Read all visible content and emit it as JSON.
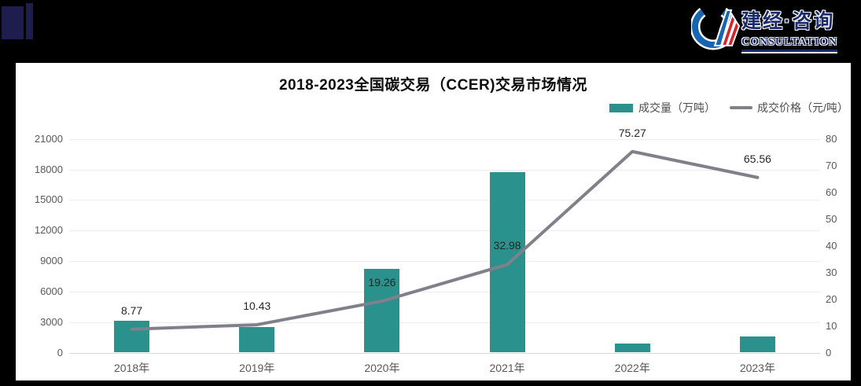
{
  "header": {
    "logo": {
      "brand_cn": "建经·咨询",
      "brand_en": "CONSULTATION",
      "ring_color": "#1565b0",
      "stripe_color": "#d8232a",
      "text_color": "#1a2a6c"
    },
    "accent_color": "#1d1d4e",
    "background": "#000000"
  },
  "chart_data": {
    "type": "bar+line",
    "title": "2018-2023全国碳交易（CCER)交易市场情况",
    "categories": [
      "2018年",
      "2019年",
      "2020年",
      "2021年",
      "2022年",
      "2023年"
    ],
    "series": [
      {
        "name": "成交量（万吨）",
        "type": "bar",
        "axis": "left",
        "color": "#2a918c",
        "values": [
          3100,
          2500,
          8200,
          17700,
          900,
          1600
        ]
      },
      {
        "name": "成交价格（元/吨）",
        "type": "line",
        "axis": "right",
        "color": "#80808a",
        "values": [
          8.77,
          10.43,
          19.26,
          32.98,
          75.27,
          65.56
        ],
        "point_labels": [
          "8.77",
          "10.43",
          "19.26",
          "32.98",
          "75.27",
          "65.56"
        ]
      }
    ],
    "left_axis": {
      "min": 0,
      "max": 21000,
      "step": 3000,
      "ticks": [
        "21000",
        "18000",
        "15000",
        "12000",
        "9000",
        "6000",
        "3000",
        "0"
      ]
    },
    "right_axis": {
      "min": 0,
      "max": 80,
      "step": 10,
      "ticks": [
        "80",
        "70",
        "60",
        "50",
        "40",
        "30",
        "20",
        "10",
        "0"
      ]
    },
    "grid": true,
    "legend_position": "top-right"
  }
}
